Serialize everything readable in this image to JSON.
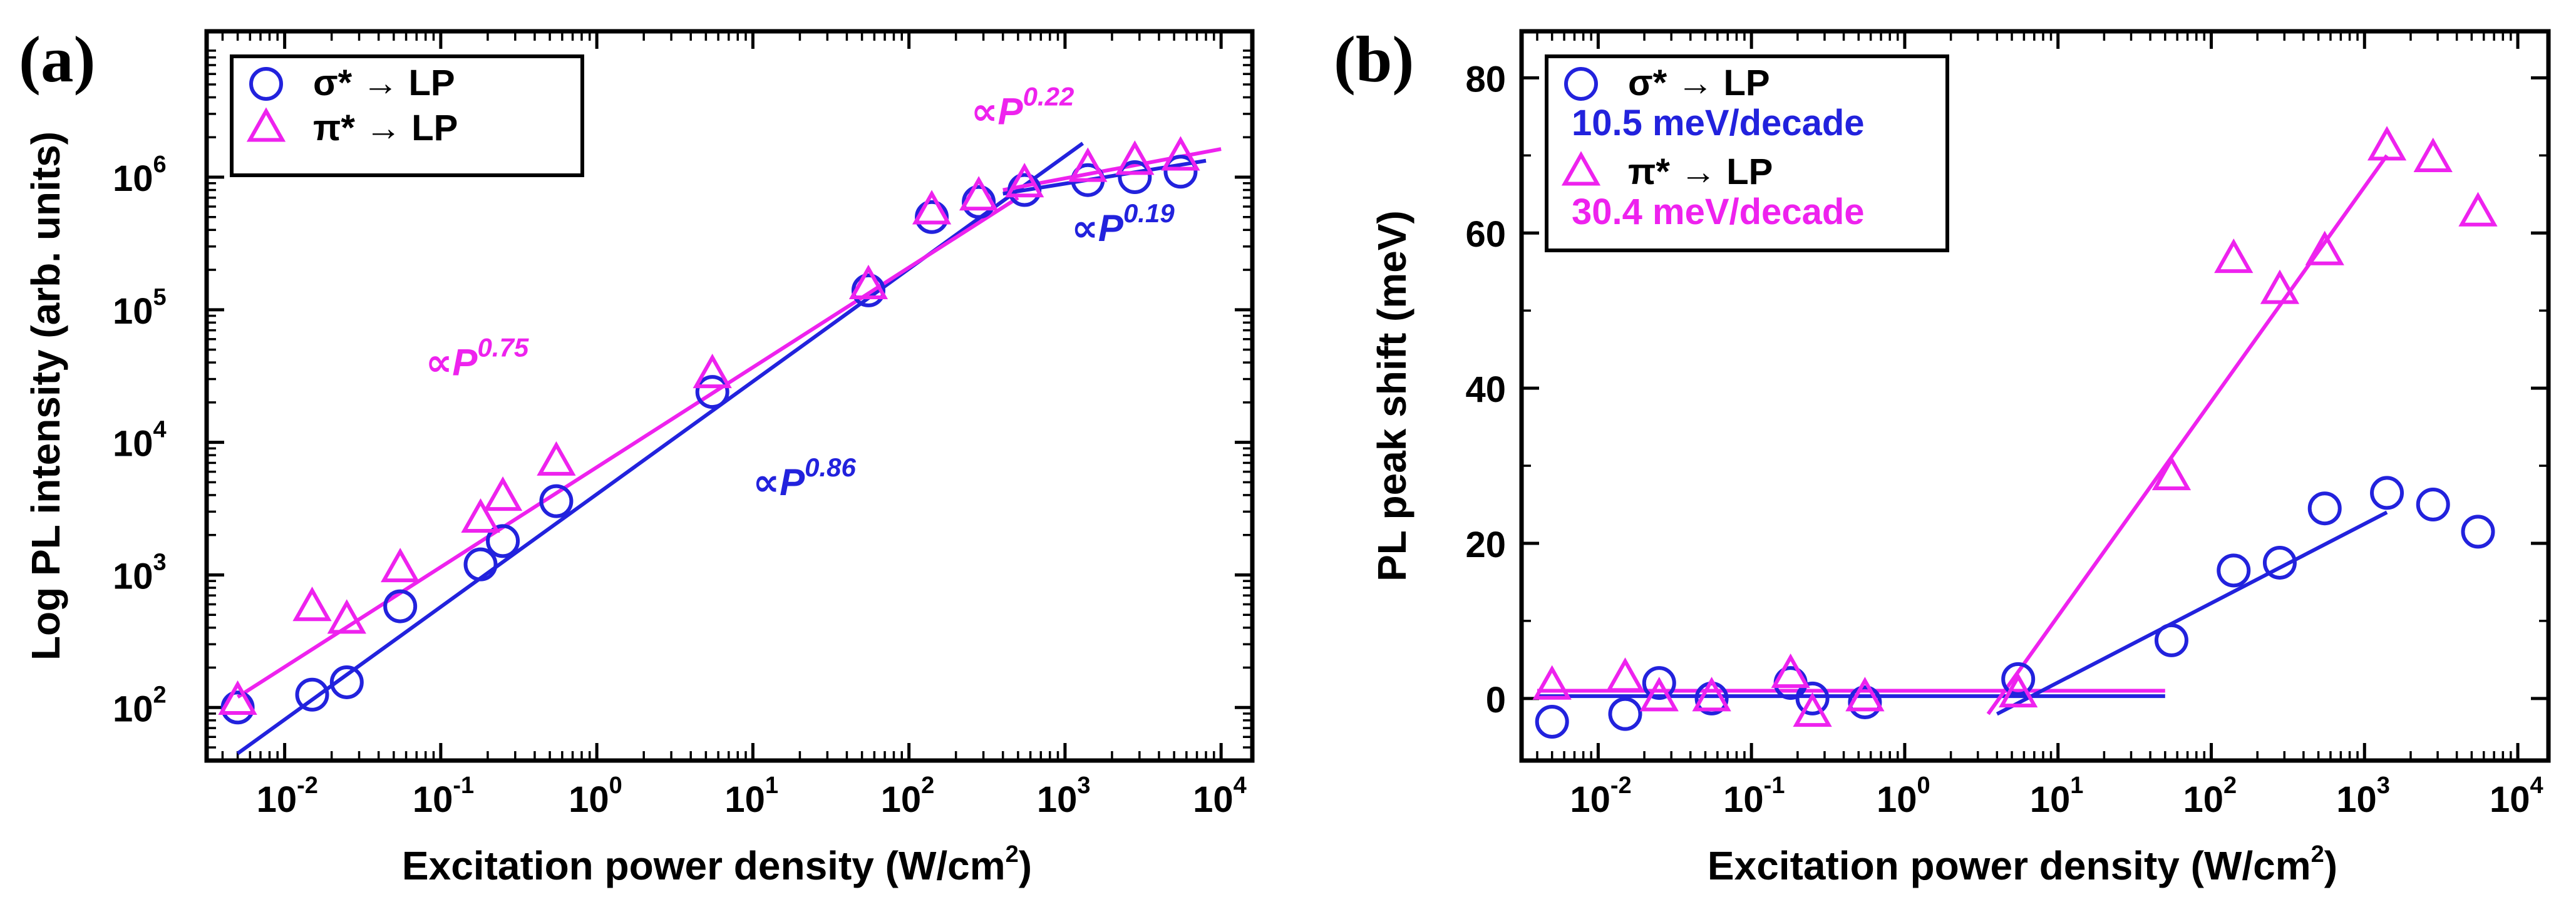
{
  "colors": {
    "sigma": "#2222dd",
    "pi": "#ee22ee",
    "axis": "#000000",
    "frame": "#000000"
  },
  "chart_data": [
    {
      "panel": "(a)",
      "type": "scatter",
      "xscale": "log",
      "yscale": "log",
      "xlim_log10": [
        -2.5,
        4.2
      ],
      "ylim_log10": [
        1.6,
        7.1
      ],
      "xlabel": "Excitation power density (W/cm2)",
      "xlabel_main": "Excitation power density (W/cm",
      "xlabel_exp": "2",
      "xlabel_tail": ")",
      "ylabel": "Log PL intensity (arb. units)",
      "xticks": [
        {
          "base": "10",
          "exp": "-2",
          "log10": -2
        },
        {
          "base": "10",
          "exp": "-1",
          "log10": -1
        },
        {
          "base": "10",
          "exp": "0",
          "log10": 0
        },
        {
          "base": "10",
          "exp": "1",
          "log10": 1
        },
        {
          "base": "10",
          "exp": "2",
          "log10": 2
        },
        {
          "base": "10",
          "exp": "3",
          "log10": 3
        },
        {
          "base": "10",
          "exp": "4",
          "log10": 4
        }
      ],
      "yticks": [
        {
          "base": "10",
          "exp": "2",
          "log10": 2
        },
        {
          "base": "10",
          "exp": "3",
          "log10": 3
        },
        {
          "base": "10",
          "exp": "4",
          "log10": 4
        },
        {
          "base": "10",
          "exp": "5",
          "log10": 5
        },
        {
          "base": "10",
          "exp": "6",
          "log10": 6
        }
      ],
      "legend": {
        "placement": "top-left",
        "entries": [
          {
            "series": "sigma",
            "label": "σ* → LP"
          },
          {
            "series": "pi",
            "label": "π* → LP"
          }
        ]
      },
      "series": [
        {
          "key": "sigma",
          "name": "σ* → LP",
          "marker": "circle",
          "x": [
            0.005,
            0.015,
            0.025,
            0.055,
            0.18,
            0.25,
            0.55,
            5.5,
            55,
            140,
            280,
            550,
            1400,
            2800,
            5500
          ],
          "y": [
            100,
            125,
            155,
            580,
            1200,
            1800,
            3600,
            24000,
            140000,
            500000,
            650000,
            800000,
            950000,
            1000000,
            1100000
          ]
        },
        {
          "key": "pi",
          "name": "π* → LP",
          "marker": "triangle",
          "x": [
            0.005,
            0.015,
            0.025,
            0.055,
            0.18,
            0.25,
            0.55,
            5.5,
            55,
            140,
            280,
            550,
            1400,
            2800,
            5500
          ],
          "y": [
            110,
            560,
            450,
            1100,
            2600,
            3800,
            7000,
            32000,
            150000,
            550000,
            700000,
            880000,
            1150000,
            1300000,
            1400000
          ]
        }
      ],
      "fits": [
        {
          "series": "sigma",
          "label_main": "∝P",
          "label_exp": "0.86",
          "points": [
            [
              0.005,
              45
            ],
            [
              1300,
              1800000
            ]
          ]
        },
        {
          "series": "sigma",
          "label_main": "∝P",
          "label_exp": "0.19",
          "points": [
            [
              400,
              750000
            ],
            [
              8000,
              1330000
            ]
          ]
        },
        {
          "series": "pi",
          "label_main": "∝P",
          "label_exp": "0.75",
          "points": [
            [
              0.005,
              120
            ],
            [
              500,
              700000
            ]
          ]
        },
        {
          "series": "pi",
          "label_main": "∝P",
          "label_exp": "0.22",
          "points": [
            [
              400,
              800000
            ],
            [
              10000,
              1630000
            ]
          ]
        }
      ],
      "annotations": [
        {
          "series": "pi",
          "text_main": "∝P",
          "text_exp": "0.22",
          "at": [
            250,
            2500000
          ]
        },
        {
          "series": "sigma",
          "text_main": "∝P",
          "text_exp": "0.19",
          "at": [
            1100,
            330000
          ]
        },
        {
          "series": "pi",
          "text_main": "∝P",
          "text_exp": "0.75",
          "at": [
            0.08,
            32000
          ]
        },
        {
          "series": "sigma",
          "text_main": "∝P",
          "text_exp": "0.86",
          "at": [
            10,
            4000
          ]
        }
      ]
    },
    {
      "panel": "(b)",
      "type": "scatter",
      "xscale": "log",
      "yscale": "linear",
      "xlim_log10": [
        -2.5,
        4.2
      ],
      "ylim": [
        -8,
        86
      ],
      "xlabel": "Excitation power density (W/cm2)",
      "xlabel_main": "Excitation power density (W/cm",
      "xlabel_exp": "2",
      "xlabel_tail": ")",
      "ylabel": "PL peak shift (meV)",
      "xticks": [
        {
          "base": "10",
          "exp": "-2",
          "log10": -2
        },
        {
          "base": "10",
          "exp": "-1",
          "log10": -1
        },
        {
          "base": "10",
          "exp": "0",
          "log10": 0
        },
        {
          "base": "10",
          "exp": "1",
          "log10": 1
        },
        {
          "base": "10",
          "exp": "2",
          "log10": 2
        },
        {
          "base": "10",
          "exp": "3",
          "log10": 3
        },
        {
          "base": "10",
          "exp": "4",
          "log10": 4
        }
      ],
      "yticks": [
        {
          "label": "0",
          "value": 0
        },
        {
          "label": "20",
          "value": 20
        },
        {
          "label": "40",
          "value": 40
        },
        {
          "label": "60",
          "value": 60
        },
        {
          "label": "80",
          "value": 80
        }
      ],
      "legend": {
        "placement": "top-left",
        "entries": [
          {
            "series": "sigma",
            "label": "σ* → LP",
            "note": "10.5 meV/decade"
          },
          {
            "series": "pi",
            "label": "π* → LP",
            "note": "30.4 meV/decade"
          }
        ]
      },
      "series": [
        {
          "key": "sigma",
          "name": "σ* → LP",
          "marker": "circle",
          "x": [
            0.005,
            0.015,
            0.025,
            0.055,
            0.18,
            0.25,
            0.55,
            5.5,
            55,
            140,
            280,
            550,
            1400,
            2800,
            5500
          ],
          "y": [
            -3,
            -2,
            2,
            0,
            2,
            0,
            -0.5,
            2.5,
            7.5,
            16.5,
            17.5,
            24.5,
            26.5,
            25,
            21.5
          ]
        },
        {
          "key": "pi",
          "name": "π* → LP",
          "marker": "triangle",
          "x": [
            0.005,
            0.015,
            0.025,
            0.055,
            0.18,
            0.25,
            0.55,
            5.5,
            55,
            140,
            280,
            550,
            1400,
            2800,
            5500
          ],
          "y": [
            1.5,
            2.5,
            0,
            0,
            3,
            -2,
            0,
            0.5,
            28.5,
            56.5,
            52.5,
            57.5,
            71,
            69.5,
            62.5
          ]
        }
      ],
      "fits": [
        {
          "series": "sigma",
          "points": [
            [
              0.004,
              0.3
            ],
            [
              50,
              0.3
            ]
          ]
        },
        {
          "series": "pi",
          "points": [
            [
              0.004,
              1
            ],
            [
              50,
              1
            ]
          ]
        },
        {
          "series": "sigma",
          "points": [
            [
              4,
              -2
            ],
            [
              1400,
              24
            ]
          ]
        },
        {
          "series": "pi",
          "points": [
            [
              3.5,
              -2
            ],
            [
              1400,
              70
            ]
          ]
        }
      ]
    }
  ]
}
